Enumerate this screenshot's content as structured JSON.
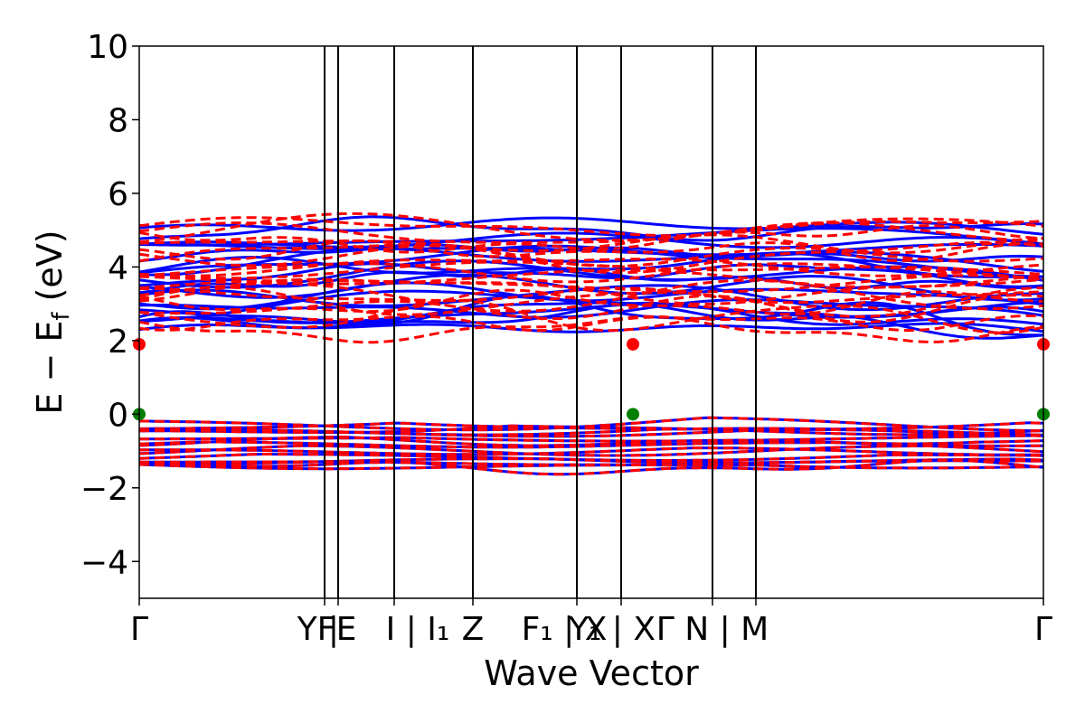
{
  "chart_data": {
    "type": "line",
    "title": "",
    "xlabel": "Wave Vector",
    "ylabel": "E − E",
    "ylabel_sub": "f",
    "ylabel_unit": " (eV)",
    "ylim": [
      -5,
      10
    ],
    "yticks": [
      -4,
      -2,
      0,
      2,
      4,
      6,
      8,
      10
    ],
    "ytick_labels": [
      "−4",
      "−2",
      "0",
      "2",
      "4",
      "6",
      "8",
      "10"
    ],
    "xlim": [
      0,
      100
    ],
    "kpoint_lines": [
      20.5,
      22.0,
      28.2,
      36.9,
      48.4,
      53.3,
      63.4,
      68.2
    ],
    "kpoint_labels": [
      {
        "pos": 0.0,
        "text": "Γ"
      },
      {
        "pos": 19.6,
        "text": "YF"
      },
      {
        "pos": 21.5,
        "text": "|"
      },
      {
        "pos": 22.9,
        "text": "E"
      },
      {
        "pos": 30.8,
        "text": "I | I₁"
      },
      {
        "pos": 28.0,
        "text": ""
      },
      {
        "pos": 36.9,
        "text": "Z"
      },
      {
        "pos": 47.0,
        "text": "F₁ | X"
      },
      {
        "pos": 52.3,
        "text": "Y₁ | X"
      },
      {
        "pos": 63.4,
        "text": "Γ N | M"
      },
      {
        "pos": 100.0,
        "text": "Γ"
      }
    ],
    "series": [
      {
        "name": "",
        "color": "#0000ff",
        "style": "solid"
      },
      {
        "name": "",
        "color": "#ff0000",
        "style": "dashed"
      }
    ],
    "markers": [
      {
        "x": 0,
        "y": 1.9,
        "color": "#ff0000"
      },
      {
        "x": 54.6,
        "y": 1.9,
        "color": "#ff0000"
      },
      {
        "x": 100,
        "y": 1.9,
        "color": "#ff0000"
      },
      {
        "x": 0,
        "y": 0,
        "color": "#008000"
      },
      {
        "x": 54.6,
        "y": 0,
        "color": "#008000"
      },
      {
        "x": 100,
        "y": 0,
        "color": "#008000"
      }
    ]
  }
}
